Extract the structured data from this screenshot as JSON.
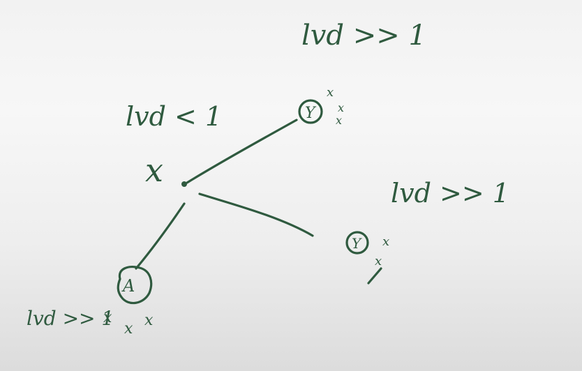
{
  "whiteboard": {
    "ink_color": "#2f5a3f",
    "labels": {
      "lvd_top": "lvd >> 1",
      "lvd_left": "lvd < 1",
      "lvd_right": "lvd >> 1",
      "lvd_bottom": "lvd >> 1"
    },
    "nodes": {
      "center": {
        "label": "x"
      },
      "top_right": {
        "label": "Y",
        "marks": [
          "x",
          "x",
          "x"
        ]
      },
      "right": {
        "label": "Y",
        "marks": [
          "x",
          "x"
        ]
      },
      "bottom_left": {
        "label": "A",
        "marks": [
          "x",
          "x",
          "x"
        ]
      }
    }
  }
}
